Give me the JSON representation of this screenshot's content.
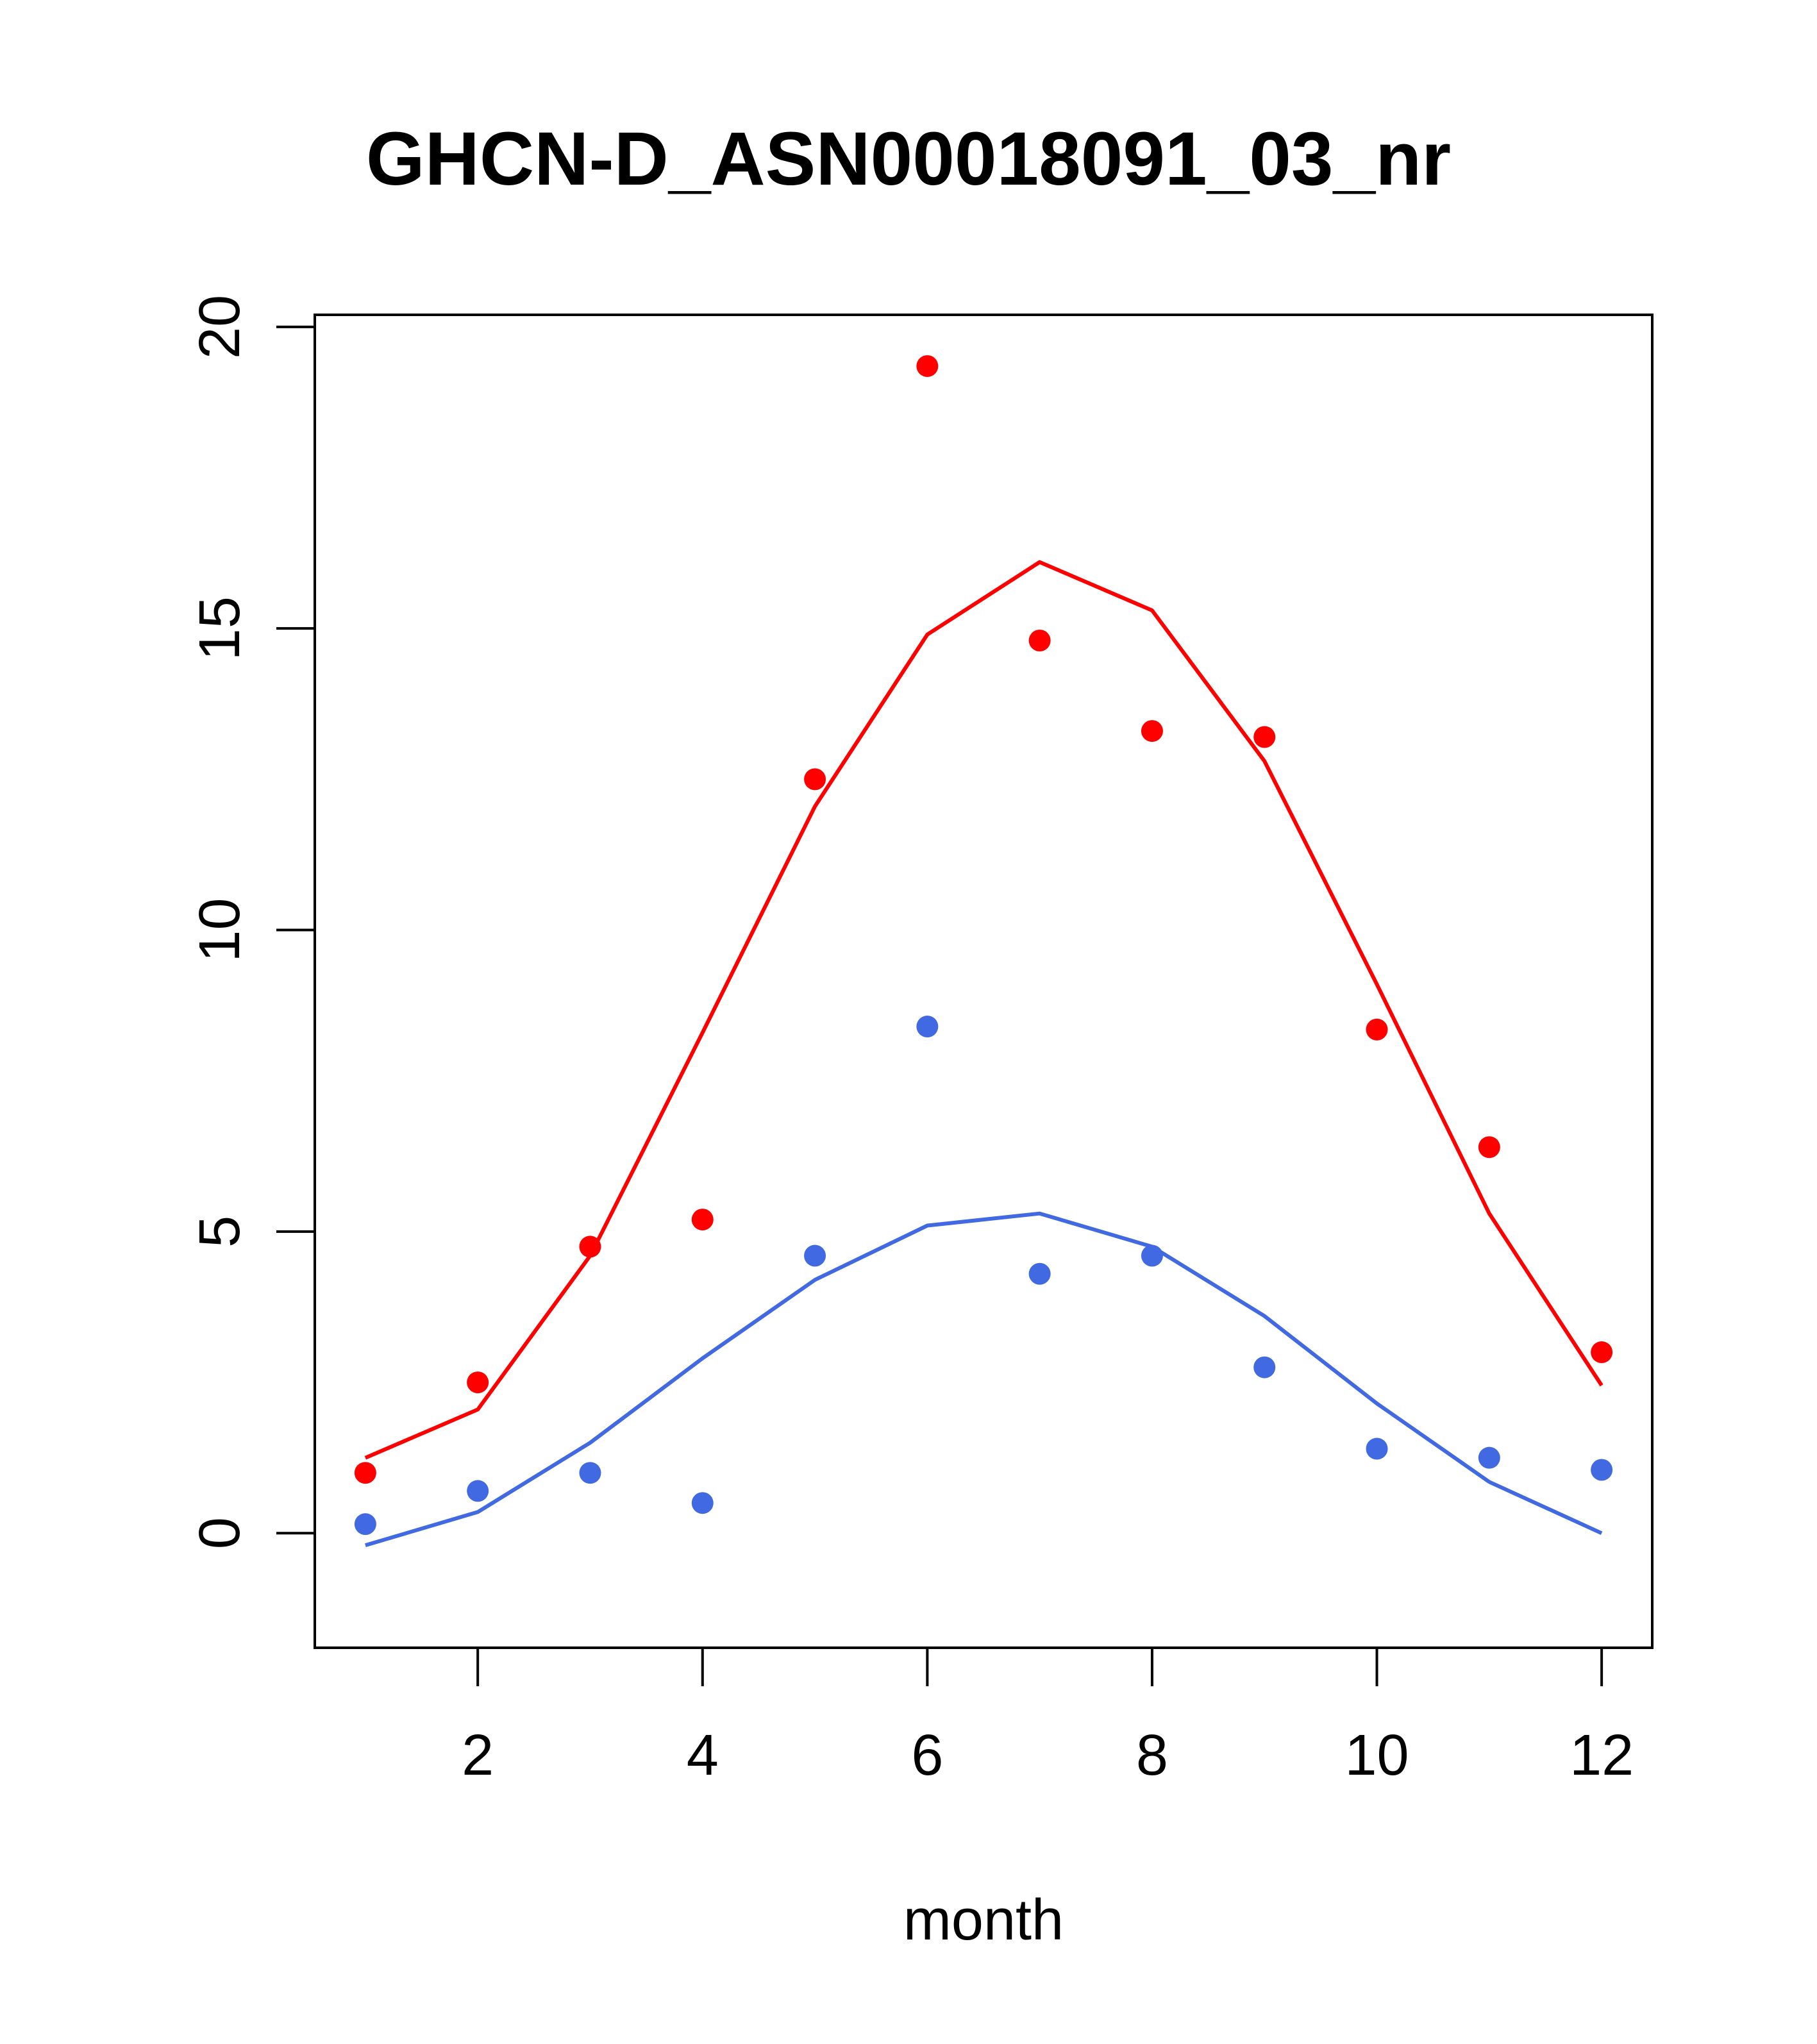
{
  "chart_data": {
    "type": "scatter",
    "title": "GHCN-D_ASN00018091_03_nr",
    "xlabel": "month",
    "ylabel": "",
    "xlim": [
      0.55,
      12.45
    ],
    "ylim": [
      -1.9,
      20.2
    ],
    "xticks": [
      2,
      4,
      6,
      8,
      10,
      12
    ],
    "yticks": [
      0,
      5,
      10,
      15,
      20
    ],
    "grid": false,
    "series": [
      {
        "color": "#ff0000",
        "points": [
          {
            "x": 1,
            "y": 1.0
          },
          {
            "x": 2,
            "y": 2.5
          },
          {
            "x": 3,
            "y": 4.75
          },
          {
            "x": 4,
            "y": 5.2
          },
          {
            "x": 5,
            "y": 12.5
          },
          {
            "x": 6,
            "y": 19.35
          },
          {
            "x": 7,
            "y": 14.8
          },
          {
            "x": 8,
            "y": 13.3
          },
          {
            "x": 9,
            "y": 13.2
          },
          {
            "x": 10,
            "y": 8.35
          },
          {
            "x": 11,
            "y": 6.4
          },
          {
            "x": 12,
            "y": 3.0
          }
        ],
        "line": [
          {
            "x": 1,
            "y": 1.25
          },
          {
            "x": 2,
            "y": 2.05
          },
          {
            "x": 3,
            "y": 4.6
          },
          {
            "x": 4,
            "y": 8.3
          },
          {
            "x": 5,
            "y": 12.05
          },
          {
            "x": 6,
            "y": 14.9
          },
          {
            "x": 7,
            "y": 16.1
          },
          {
            "x": 8,
            "y": 15.3
          },
          {
            "x": 9,
            "y": 12.8
          },
          {
            "x": 10,
            "y": 9.1
          },
          {
            "x": 11,
            "y": 5.3
          },
          {
            "x": 12,
            "y": 2.45
          }
        ]
      },
      {
        "color": "#4169e1",
        "points": [
          {
            "x": 1,
            "y": 0.15
          },
          {
            "x": 2,
            "y": 0.7
          },
          {
            "x": 3,
            "y": 1.0
          },
          {
            "x": 4,
            "y": 0.5
          },
          {
            "x": 5,
            "y": 4.6
          },
          {
            "x": 6,
            "y": 8.4
          },
          {
            "x": 7,
            "y": 4.3
          },
          {
            "x": 8,
            "y": 4.6
          },
          {
            "x": 9,
            "y": 2.75
          },
          {
            "x": 10,
            "y": 1.4
          },
          {
            "x": 11,
            "y": 1.25
          },
          {
            "x": 12,
            "y": 1.05
          }
        ],
        "line": [
          {
            "x": 1,
            "y": -0.2
          },
          {
            "x": 2,
            "y": 0.35
          },
          {
            "x": 3,
            "y": 1.5
          },
          {
            "x": 4,
            "y": 2.9
          },
          {
            "x": 5,
            "y": 4.2
          },
          {
            "x": 6,
            "y": 5.1
          },
          {
            "x": 7,
            "y": 5.3
          },
          {
            "x": 8,
            "y": 4.75
          },
          {
            "x": 9,
            "y": 3.6
          },
          {
            "x": 10,
            "y": 2.15
          },
          {
            "x": 11,
            "y": 0.85
          },
          {
            "x": 12,
            "y": 0.0
          }
        ]
      }
    ]
  }
}
